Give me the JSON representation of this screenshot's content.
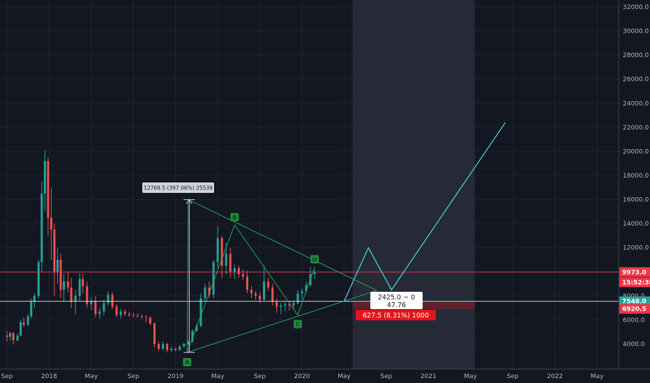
{
  "chart_data": {
    "type": "candlestick",
    "y_axis": {
      "ylim": [
        2800,
        32600
      ],
      "ticks": [
        "4000.0",
        "6000.0",
        "8000.0",
        "10000.0",
        "12000.0",
        "14000.0",
        "16000.0",
        "18000.0",
        "20000.0",
        "22000.0",
        "24000.0",
        "26000.0",
        "28000.0",
        "30000.0",
        "32000.0"
      ],
      "tick_values": [
        4000,
        6000,
        8000,
        10000,
        12000,
        14000,
        16000,
        18000,
        20000,
        22000,
        24000,
        26000,
        28000,
        30000,
        32000
      ]
    },
    "x_axis": {
      "ticks": [
        {
          "label": "Sep",
          "t": 0
        },
        {
          "label": "2018",
          "t": 4
        },
        {
          "label": "May",
          "t": 8
        },
        {
          "label": "Sep",
          "t": 12
        },
        {
          "label": "2019",
          "t": 16
        },
        {
          "label": "May",
          "t": 20
        },
        {
          "label": "Sep",
          "t": 24
        },
        {
          "label": "2020",
          "t": 28
        },
        {
          "label": "May",
          "t": 32
        },
        {
          "label": "Sep",
          "t": 36
        },
        {
          "label": "2021",
          "t": 40
        },
        {
          "label": "May",
          "t": 44
        },
        {
          "label": "Sep",
          "t": 48
        },
        {
          "label": "2022",
          "t": 52
        },
        {
          "label": "May",
          "t": 56
        }
      ]
    },
    "price_tags": [
      {
        "value": "9973.0",
        "price": 9973,
        "color": "#f23645"
      },
      {
        "value": "15:52:38",
        "price": 9130,
        "color": "#f23645"
      },
      {
        "value": "7548.0",
        "price": 7548,
        "color": "#26a69a"
      },
      {
        "value": "6920.5",
        "price": 6920.5,
        "color": "#f23645"
      }
    ],
    "price_lines": [
      {
        "price": 9973,
        "color": "#f23645"
      },
      {
        "price": 7548,
        "color": "#ffffff"
      }
    ],
    "candles_ohlc": [
      [
        0.0,
        4700,
        5100,
        4200,
        4600
      ],
      [
        0.3,
        4600,
        5000,
        4300,
        4900
      ],
      [
        0.6,
        4900,
        5000,
        4000,
        4300
      ],
      [
        1.0,
        4300,
        4900,
        4200,
        4700
      ],
      [
        1.3,
        4700,
        6000,
        4600,
        5800
      ],
      [
        1.6,
        5800,
        6200,
        5400,
        5600
      ],
      [
        2.0,
        5600,
        6500,
        5500,
        6300
      ],
      [
        2.3,
        6300,
        7800,
        6100,
        7500
      ],
      [
        2.6,
        7500,
        8200,
        7000,
        8000
      ],
      [
        3.0,
        8000,
        11000,
        7800,
        10800
      ],
      [
        3.3,
        10800,
        17500,
        10000,
        16500
      ],
      [
        3.6,
        16500,
        20100,
        15000,
        19200
      ],
      [
        3.9,
        19200,
        19500,
        13000,
        14500
      ],
      [
        4.2,
        14500,
        17000,
        11000,
        13500
      ],
      [
        4.5,
        13500,
        14000,
        8000,
        10000
      ],
      [
        4.8,
        10000,
        12000,
        9000,
        11000
      ],
      [
        5.1,
        11000,
        11500,
        7800,
        8500
      ],
      [
        5.4,
        8500,
        9800,
        7500,
        9200
      ],
      [
        5.8,
        9200,
        10000,
        8300,
        8700
      ],
      [
        6.1,
        8700,
        9500,
        7000,
        7500
      ],
      [
        6.5,
        7500,
        8500,
        6500,
        8000
      ],
      [
        6.9,
        8000,
        9900,
        7600,
        9400
      ],
      [
        7.2,
        9400,
        9800,
        8200,
        8800
      ],
      [
        7.6,
        8800,
        9200,
        7000,
        7300
      ],
      [
        8.0,
        7300,
        7900,
        6800,
        7600
      ],
      [
        8.4,
        7600,
        8000,
        6200,
        6500
      ],
      [
        8.8,
        6500,
        7000,
        6100,
        6700
      ],
      [
        9.2,
        6700,
        7700,
        6400,
        7400
      ],
      [
        9.6,
        7400,
        8400,
        7200,
        8100
      ],
      [
        10.0,
        8100,
        8300,
        6900,
        7100
      ],
      [
        10.4,
        7100,
        7300,
        6200,
        6400
      ],
      [
        10.8,
        6400,
        6900,
        6100,
        6700
      ],
      [
        11.2,
        6700,
        6900,
        6300,
        6500
      ],
      [
        11.6,
        6500,
        6700,
        6250,
        6400
      ],
      [
        12.0,
        6400,
        6600,
        6200,
        6350
      ],
      [
        12.4,
        6350,
        6550,
        6200,
        6300
      ],
      [
        12.8,
        6300,
        6450,
        6100,
        6250
      ],
      [
        13.2,
        6250,
        6400,
        5800,
        6200
      ],
      [
        13.6,
        6200,
        6300,
        5600,
        5700
      ],
      [
        14.0,
        5700,
        5800,
        3700,
        4000
      ],
      [
        14.4,
        4000,
        4200,
        3400,
        3600
      ],
      [
        14.8,
        3600,
        4200,
        3500,
        4000
      ],
      [
        15.2,
        4000,
        4100,
        3300,
        3500
      ],
      [
        15.6,
        3500,
        3800,
        3300,
        3600
      ],
      [
        16.0,
        3600,
        3700,
        3400,
        3500
      ],
      [
        16.4,
        3500,
        3900,
        3450,
        3800
      ],
      [
        16.8,
        3800,
        4100,
        3700,
        4000
      ],
      [
        17.2,
        4000,
        4300,
        3900,
        4200
      ],
      [
        17.6,
        4200,
        5200,
        4100,
        5100
      ],
      [
        18.0,
        5100,
        5700,
        5000,
        5500
      ],
      [
        18.4,
        5500,
        8200,
        5400,
        7800
      ],
      [
        18.8,
        7800,
        9000,
        7500,
        8700
      ],
      [
        19.2,
        8700,
        9200,
        7800,
        8100
      ],
      [
        19.6,
        8100,
        11000,
        7800,
        10800
      ],
      [
        20.0,
        10800,
        13800,
        10300,
        12800
      ],
      [
        20.4,
        12800,
        13000,
        9500,
        10500
      ],
      [
        20.8,
        10500,
        12400,
        9800,
        11500
      ],
      [
        21.2,
        11500,
        12000,
        9500,
        10000
      ],
      [
        21.6,
        10000,
        10600,
        9400,
        10300
      ],
      [
        22.0,
        10300,
        10500,
        9500,
        9800
      ],
      [
        22.4,
        9800,
        10200,
        9300,
        9600
      ],
      [
        22.8,
        9600,
        10100,
        8200,
        8500
      ],
      [
        23.2,
        8500,
        8800,
        7800,
        8200
      ],
      [
        23.6,
        8200,
        8400,
        7700,
        8000
      ],
      [
        24.0,
        8000,
        8300,
        7400,
        7700
      ],
      [
        24.4,
        7700,
        10500,
        7600,
        9200
      ],
      [
        24.8,
        9200,
        9500,
        8400,
        8700
      ],
      [
        25.2,
        8700,
        9000,
        7200,
        7500
      ],
      [
        25.6,
        7500,
        7800,
        6600,
        7100
      ],
      [
        26.0,
        7100,
        7400,
        6500,
        7200
      ],
      [
        26.4,
        7200,
        7500,
        6700,
        7300
      ],
      [
        26.8,
        7300,
        7600,
        6800,
        7200
      ],
      [
        27.2,
        7200,
        7600,
        6900,
        7400
      ],
      [
        27.6,
        7400,
        8500,
        7300,
        8200
      ],
      [
        28.0,
        8200,
        8600,
        7700,
        8400
      ],
      [
        28.4,
        8400,
        9200,
        8200,
        8900
      ],
      [
        28.8,
        8900,
        10400,
        8800,
        9800
      ],
      [
        29.2,
        9800,
        10200,
        9400,
        9973
      ]
    ]
  }
}
